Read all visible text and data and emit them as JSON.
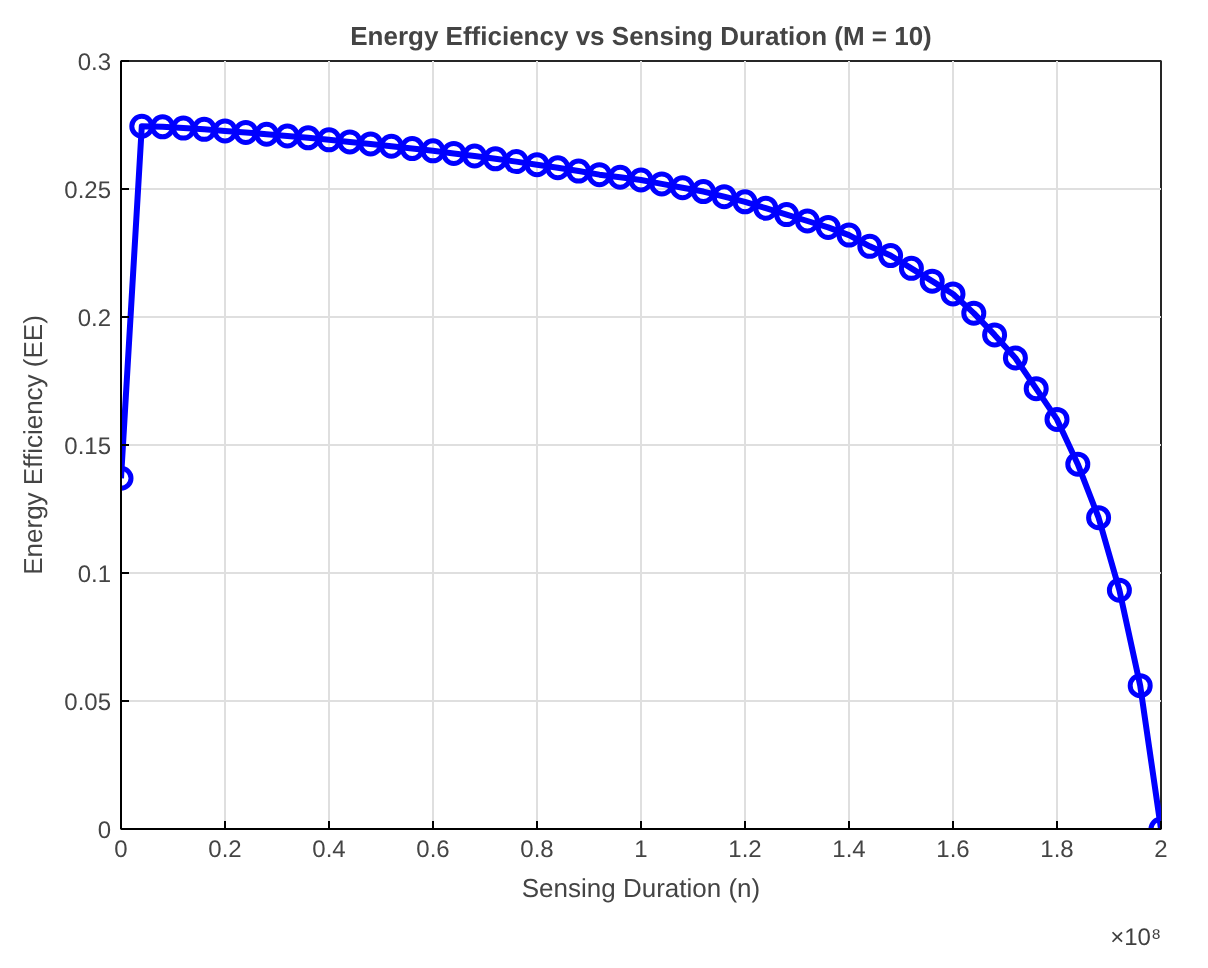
{
  "chart_data": {
    "type": "line",
    "title": "Energy Efficiency vs Sensing Duration (M = 10)",
    "xlabel": "Sensing Duration (n)",
    "ylabel": "Energy Efficiency (EE)",
    "x": [
      0,
      0.04,
      0.08,
      0.12,
      0.16,
      0.2,
      0.24,
      0.28,
      0.32,
      0.36,
      0.4,
      0.44,
      0.48,
      0.52,
      0.56,
      0.6,
      0.64,
      0.68,
      0.72,
      0.76,
      0.8,
      0.84,
      0.88,
      0.92,
      0.96,
      1.0,
      1.04,
      1.08,
      1.12,
      1.16,
      1.2,
      1.24,
      1.28,
      1.32,
      1.36,
      1.4,
      1.44,
      1.48,
      1.52,
      1.56,
      1.6,
      1.64,
      1.68,
      1.72,
      1.76,
      1.8,
      1.84,
      1.88,
      1.92,
      1.96,
      2.0
    ],
    "series": [
      {
        "color": "#0000ff",
        "values": [
          0.137,
          0.2745,
          0.2743,
          0.2738,
          0.2733,
          0.2727,
          0.2721,
          0.2714,
          0.2707,
          0.27,
          0.2692,
          0.2684,
          0.2676,
          0.2667,
          0.2658,
          0.2649,
          0.2639,
          0.2629,
          0.2618,
          0.2607,
          0.2595,
          0.2583,
          0.257,
          0.2556,
          0.2546,
          0.2535,
          0.252,
          0.2505,
          0.249,
          0.247,
          0.245,
          0.2425,
          0.24,
          0.2375,
          0.235,
          0.232,
          0.2276,
          0.224,
          0.219,
          0.214,
          0.209,
          0.2015,
          0.193,
          0.184,
          0.172,
          0.16,
          0.1425,
          0.1216,
          0.0933,
          0.056,
          0
        ]
      }
    ],
    "xlim": [
      0,
      2
    ],
    "ylim": [
      0,
      0.3
    ],
    "xticks": [
      0,
      0.2,
      0.4,
      0.6,
      0.8,
      1,
      1.2,
      1.4,
      1.6,
      1.8,
      2
    ],
    "yticks": [
      0,
      0.05,
      0.1,
      0.15,
      0.2,
      0.25,
      0.3
    ],
    "annotations": [
      "×10⁸"
    ],
    "grid": true,
    "marker": "circle",
    "line_style": "solid"
  }
}
